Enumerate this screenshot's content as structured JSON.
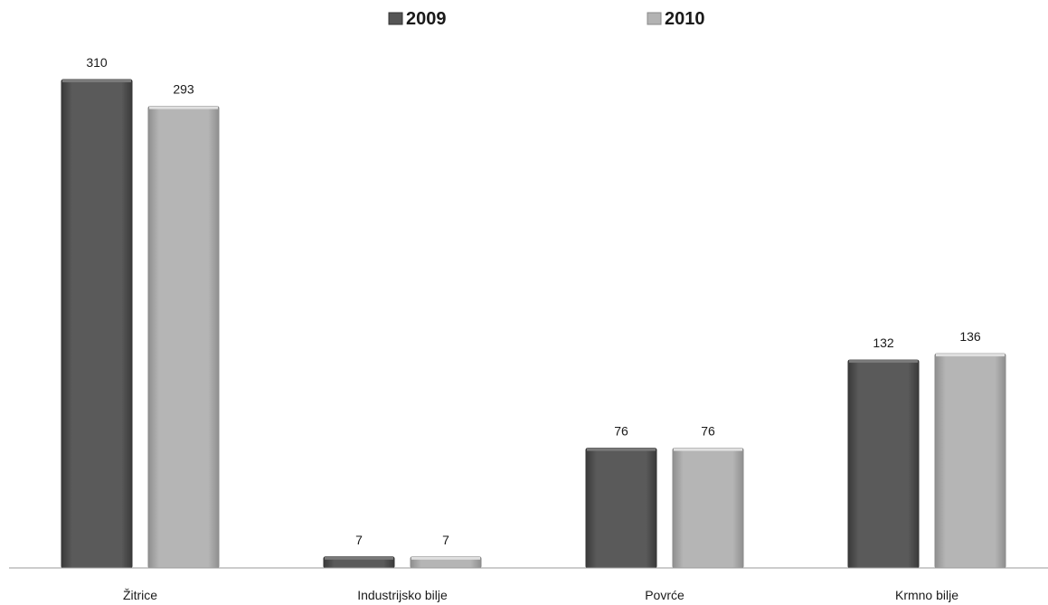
{
  "chart_data": {
    "type": "bar",
    "categories": [
      "Žitrice",
      "Industrijsko bilje",
      "Povrće",
      "Krmno bilje"
    ],
    "series": [
      {
        "name": "2009",
        "values": [
          310,
          7,
          76,
          132
        ],
        "color": "#555555"
      },
      {
        "name": "2010",
        "values": [
          293,
          7,
          76,
          136
        ],
        "color": "#b3b3b3"
      }
    ],
    "data_labels": true,
    "legend_position": "top-center",
    "grid": false,
    "ylim": [
      0,
      310
    ]
  }
}
